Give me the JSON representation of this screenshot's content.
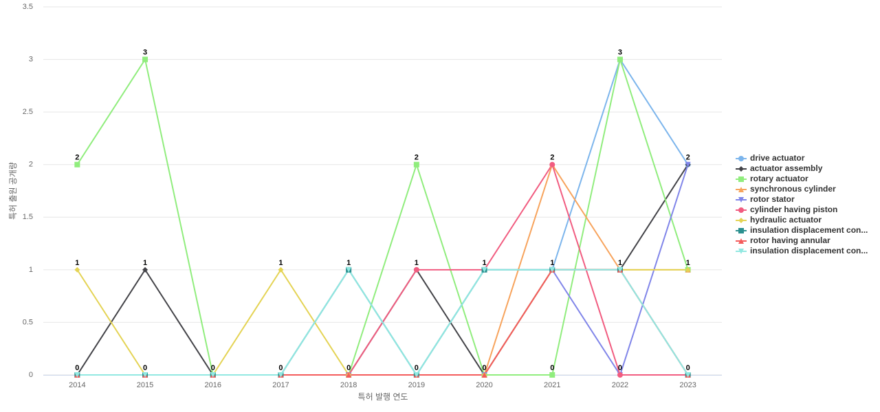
{
  "chart_data": {
    "type": "line",
    "x_label": "특허 발행 연도",
    "y_label": "특허 출원 공개량",
    "categories": [
      "2014",
      "2015",
      "2016",
      "2017",
      "2018",
      "2019",
      "2020",
      "2021",
      "2022",
      "2023"
    ],
    "ylim": [
      0,
      3.5
    ],
    "yticks": [
      0,
      0.5,
      1,
      1.5,
      2,
      2.5,
      3,
      3.5
    ],
    "grid": true,
    "series": [
      {
        "name": "drive actuator",
        "color": "#7cb5ec",
        "marker": "circle",
        "values": [
          0,
          0,
          0,
          0,
          1,
          0,
          1,
          1,
          3,
          2
        ]
      },
      {
        "name": "actuator assembly",
        "color": "#434348",
        "marker": "diamond",
        "values": [
          0,
          1,
          0,
          0,
          0,
          1,
          0,
          1,
          1,
          2
        ]
      },
      {
        "name": "rotary actuator",
        "color": "#90ed7d",
        "marker": "square",
        "values": [
          2,
          3,
          0,
          0,
          0,
          2,
          0,
          0,
          3,
          1
        ]
      },
      {
        "name": "synchronous cylinder",
        "color": "#f7a35c",
        "marker": "triangle",
        "values": [
          0,
          0,
          0,
          0,
          0,
          0,
          0,
          2,
          1,
          1
        ]
      },
      {
        "name": "rotor stator",
        "color": "#8085e9",
        "marker": "triangle-down",
        "values": [
          0,
          0,
          0,
          0,
          0,
          0,
          0,
          1,
          0,
          2
        ]
      },
      {
        "name": "cylinder having piston",
        "color": "#f15c80",
        "marker": "circle",
        "values": [
          0,
          0,
          0,
          0,
          0,
          1,
          1,
          2,
          0,
          0
        ]
      },
      {
        "name": "hydraulic actuator",
        "color": "#e4d354",
        "marker": "diamond",
        "values": [
          1,
          0,
          0,
          1,
          0,
          0,
          0,
          1,
          1,
          1
        ]
      },
      {
        "name": "insulation displacement con...",
        "color": "#2b908f",
        "marker": "square",
        "values": [
          0,
          0,
          0,
          0,
          1,
          0,
          1,
          1,
          1,
          0
        ]
      },
      {
        "name": "rotor having annular",
        "color": "#f45b5b",
        "marker": "triangle",
        "values": [
          0,
          0,
          0,
          0,
          0,
          0,
          0,
          1,
          1,
          0
        ]
      },
      {
        "name": "insulation displacement con...",
        "color": "#91e8e1",
        "marker": "triangle-down",
        "values": [
          0,
          0,
          0,
          0,
          1,
          0,
          1,
          1,
          1,
          0
        ]
      }
    ]
  }
}
